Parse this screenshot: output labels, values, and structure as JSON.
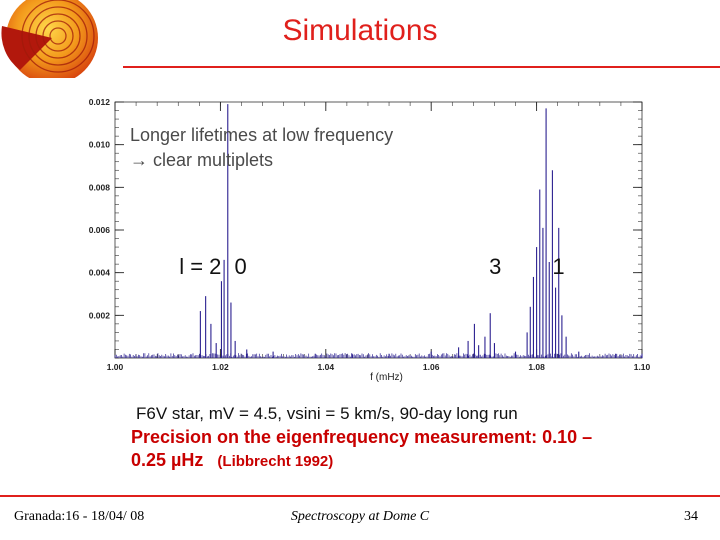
{
  "slide": {
    "title": "Simulations",
    "note_line1": "Longer lifetimes at low frequency",
    "note_arrow": "→",
    "note_line2": " clear multiplets",
    "caption": "F6V star, mV = 4.5, vsini = 5 km/s, 90-day long run",
    "precision_line1": "Precision on the eigenfrequency measurement: 0.10 –",
    "precision_line2": "0.25 µHz",
    "precision_ref": "(Libbrecht 1992)",
    "footer_left": "Granada:16 - 18/04/ 08",
    "footer_center": "Spectroscopy at Dome C",
    "footer_right": "34",
    "accent_color": "#e0201c",
    "logo_icon": "sun-interior-logo-icon"
  },
  "chart_data": {
    "type": "line",
    "title": "",
    "xlabel": "f (mHz)",
    "ylabel": "",
    "xlim": [
      1.0,
      1.1
    ],
    "ylim": [
      0.0,
      0.012
    ],
    "x_ticks": [
      "1.00",
      "1.02",
      "1.04",
      "1.06",
      "1.08",
      "1.10"
    ],
    "y_ticks": [
      "0.002",
      "0.004",
      "0.006",
      "0.008",
      "0.010",
      "0.012"
    ],
    "line_color": "#2b2090",
    "mode_labels": [
      {
        "text": "l = 2",
        "x": 1.0137
      },
      {
        "text": "0",
        "x": 1.0242
      },
      {
        "text": "3",
        "x": 1.0725
      },
      {
        "text": "1",
        "x": 1.0845
      }
    ],
    "peaks": [
      {
        "x": 1.0162,
        "y": 0.0022
      },
      {
        "x": 1.0172,
        "y": 0.0029
      },
      {
        "x": 1.0182,
        "y": 0.0016
      },
      {
        "x": 1.0192,
        "y": 0.0007
      },
      {
        "x": 1.0202,
        "y": 0.0036
      },
      {
        "x": 1.0207,
        "y": 0.0046
      },
      {
        "x": 1.0214,
        "y": 0.0119
      },
      {
        "x": 1.022,
        "y": 0.0026
      },
      {
        "x": 1.0228,
        "y": 0.0008
      },
      {
        "x": 1.025,
        "y": 0.0004
      },
      {
        "x": 1.03,
        "y": 0.0003
      },
      {
        "x": 1.038,
        "y": 0.0002
      },
      {
        "x": 1.045,
        "y": 0.0002
      },
      {
        "x": 1.052,
        "y": 0.0002
      },
      {
        "x": 1.06,
        "y": 0.0003
      },
      {
        "x": 1.0652,
        "y": 0.0005
      },
      {
        "x": 1.067,
        "y": 0.0008
      },
      {
        "x": 1.0682,
        "y": 0.0016
      },
      {
        "x": 1.069,
        "y": 0.0006
      },
      {
        "x": 1.0702,
        "y": 0.001
      },
      {
        "x": 1.0712,
        "y": 0.0021
      },
      {
        "x": 1.072,
        "y": 0.0007
      },
      {
        "x": 1.076,
        "y": 0.0003
      },
      {
        "x": 1.0782,
        "y": 0.0012
      },
      {
        "x": 1.0788,
        "y": 0.0024
      },
      {
        "x": 1.0794,
        "y": 0.0038
      },
      {
        "x": 1.08,
        "y": 0.0052
      },
      {
        "x": 1.0806,
        "y": 0.0079
      },
      {
        "x": 1.0812,
        "y": 0.0061
      },
      {
        "x": 1.0818,
        "y": 0.0117
      },
      {
        "x": 1.0824,
        "y": 0.0045
      },
      {
        "x": 1.083,
        "y": 0.0088
      },
      {
        "x": 1.0836,
        "y": 0.0033
      },
      {
        "x": 1.0842,
        "y": 0.0061
      },
      {
        "x": 1.0848,
        "y": 0.002
      },
      {
        "x": 1.0856,
        "y": 0.001
      },
      {
        "x": 1.088,
        "y": 0.0003
      },
      {
        "x": 1.095,
        "y": 0.0002
      },
      {
        "x": 1.1,
        "y": 0.0002
      }
    ]
  }
}
